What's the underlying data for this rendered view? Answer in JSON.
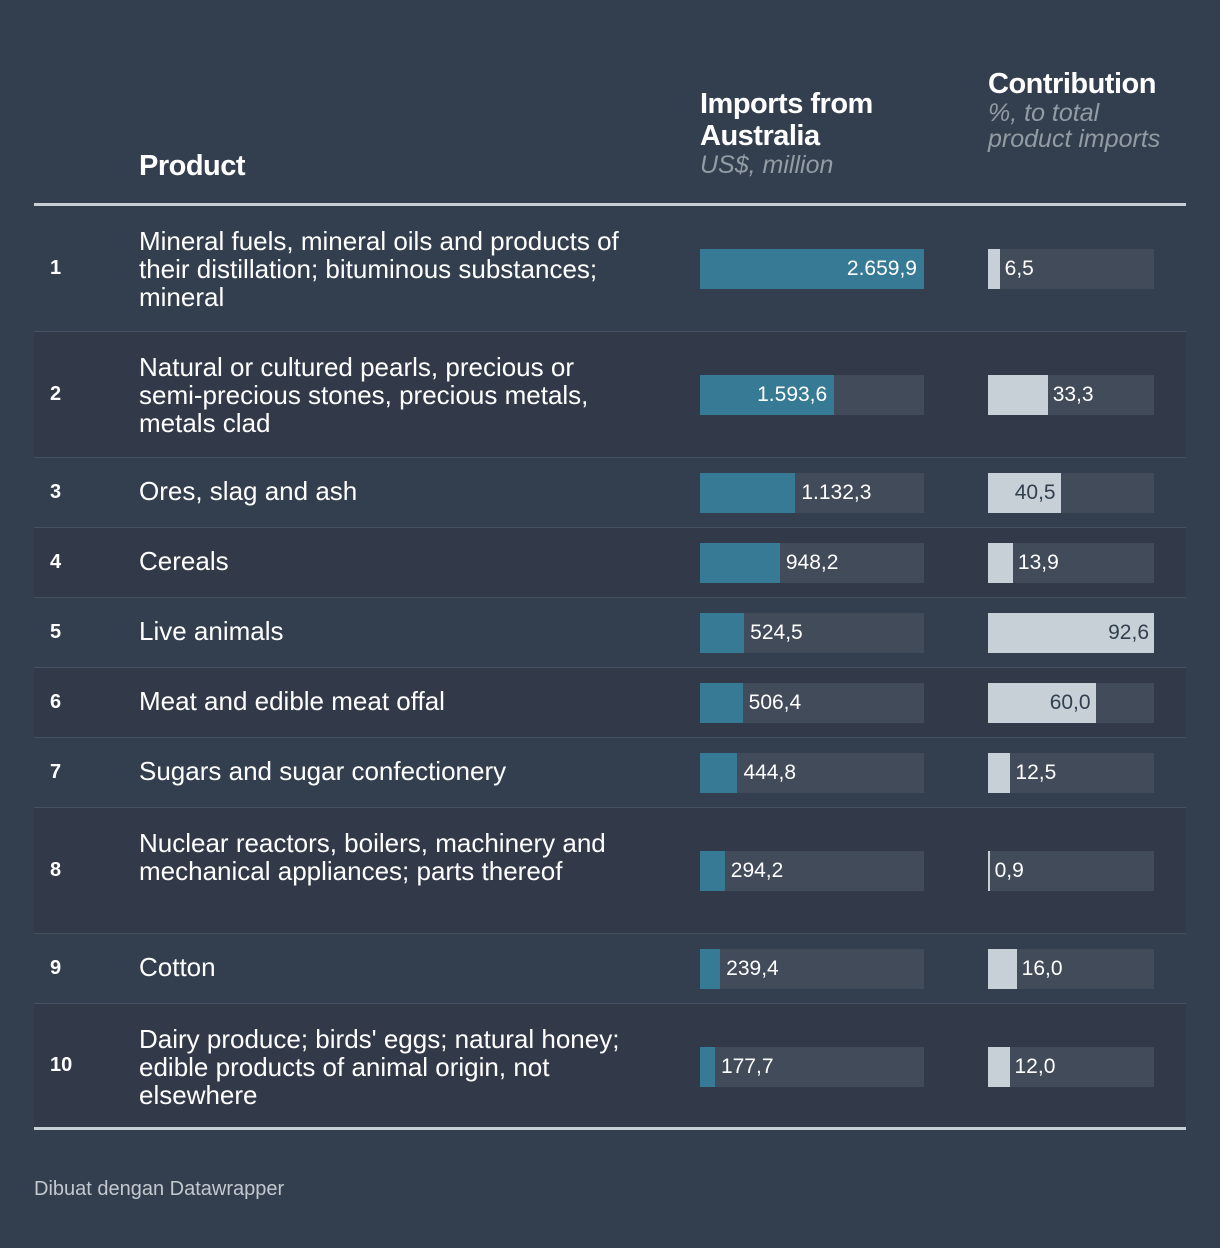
{
  "header": {
    "product": "Product",
    "imports_title": "Imports from Australia",
    "imports_unit": "US$, million",
    "contribution_title": "Contribution",
    "contribution_unit": "%, to total product imports"
  },
  "colors": {
    "background": "#333f4f",
    "imports_bar": "#377a95",
    "contribution_bar": "#c6d0d6",
    "bar_track": "#424b5a"
  },
  "chart_data": {
    "type": "table",
    "columns": [
      "Product",
      "Imports from Australia",
      "Contribution"
    ],
    "imports_max": 2659.9,
    "contribution_max": 92.6,
    "rows": [
      {
        "rank": "1",
        "product": "Mineral fuels, mineral oils and products of their distillation; bituminous substances; mineral",
        "imports": 2659.9,
        "imports_label": "2.659,9",
        "contribution": 6.5,
        "contribution_label": "6,5"
      },
      {
        "rank": "2",
        "product": "Natural or cultured pearls, precious or semi-precious stones, precious metals, metals clad",
        "imports": 1593.6,
        "imports_label": "1.593,6",
        "contribution": 33.3,
        "contribution_label": "33,3"
      },
      {
        "rank": "3",
        "product": "Ores, slag and ash",
        "imports": 1132.3,
        "imports_label": "1.132,3",
        "contribution": 40.5,
        "contribution_label": "40,5"
      },
      {
        "rank": "4",
        "product": "Cereals",
        "imports": 948.2,
        "imports_label": "948,2",
        "contribution": 13.9,
        "contribution_label": "13,9"
      },
      {
        "rank": "5",
        "product": "Live animals",
        "imports": 524.5,
        "imports_label": "524,5",
        "contribution": 92.6,
        "contribution_label": "92,6"
      },
      {
        "rank": "6",
        "product": "Meat and edible meat offal",
        "imports": 506.4,
        "imports_label": "506,4",
        "contribution": 60.0,
        "contribution_label": "60,0"
      },
      {
        "rank": "7",
        "product": "Sugars and sugar confectionery",
        "imports": 444.8,
        "imports_label": "444,8",
        "contribution": 12.5,
        "contribution_label": "12,5"
      },
      {
        "rank": "8",
        "product": "Nuclear reactors, boilers, machinery and mechanical appliances; parts thereof",
        "imports": 294.2,
        "imports_label": "294,2",
        "contribution": 0.9,
        "contribution_label": "0,9"
      },
      {
        "rank": "9",
        "product": "Cotton",
        "imports": 239.4,
        "imports_label": "239,4",
        "contribution": 16.0,
        "contribution_label": "16,0"
      },
      {
        "rank": "10",
        "product": "Dairy produce; birds' eggs; natural honey; edible products of animal origin, not elsewhere",
        "imports": 177.7,
        "imports_label": "177,7",
        "contribution": 12.0,
        "contribution_label": "12,0"
      }
    ]
  },
  "footer": {
    "credit": "Dibuat dengan Datawrapper"
  }
}
